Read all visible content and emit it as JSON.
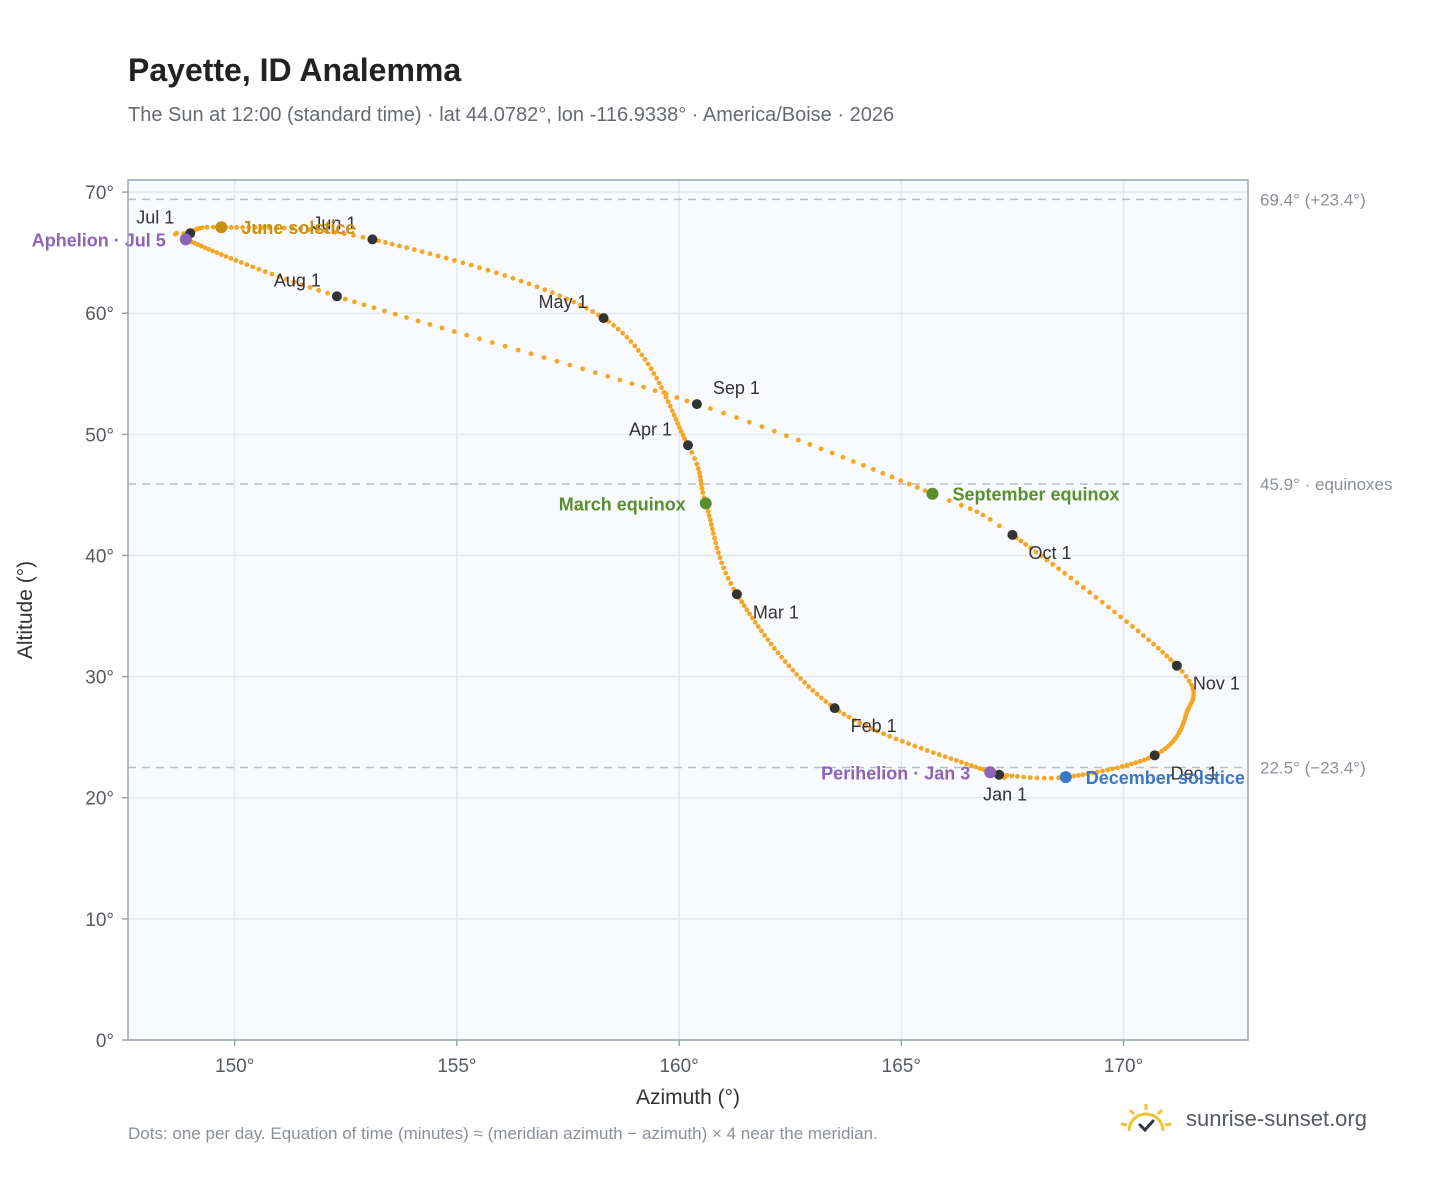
{
  "title": "Payette, ID Analemma",
  "subtitle": "The Sun at 12:00 (standard time) · lat 44.0782°, lon -116.9338° · America/Boise · 2026",
  "footnote": "Dots: one per day. Equation of time (minutes) ≈ (meridian azimuth − azimuth) × 4 near the meridian.",
  "brand": {
    "name": "sunrise-sunset.org",
    "icon": "sun-check-icon"
  },
  "colors": {
    "path": "#f5a623",
    "month_marker": "#333333",
    "solstice_june": "#c8900f",
    "solstice_december": "#3a78c3",
    "equinox": "#5a8f2d",
    "apsis": "#8d63b7",
    "reference_line": "#b8bfc8",
    "plot_bg": "#f8fafd",
    "grid": "#e3e8ee",
    "frame": "#98a4b3"
  },
  "chart_data": {
    "type": "scatter",
    "xlabel": "Azimuth (°)",
    "ylabel": "Altitude (°)",
    "xlim": [
      147.6,
      172.8
    ],
    "ylim": [
      0,
      71
    ],
    "x_ticks": [
      {
        "value": 150,
        "label": "150°"
      },
      {
        "value": 155,
        "label": "155°"
      },
      {
        "value": 160,
        "label": "160°"
      },
      {
        "value": 165,
        "label": "165°"
      },
      {
        "value": 170,
        "label": "170°"
      }
    ],
    "y_ticks": [
      {
        "value": 0,
        "label": "0°"
      },
      {
        "value": 10,
        "label": "10°"
      },
      {
        "value": 20,
        "label": "20°"
      },
      {
        "value": 30,
        "label": "30°"
      },
      {
        "value": 40,
        "label": "40°"
      },
      {
        "value": 50,
        "label": "50°"
      },
      {
        "value": 60,
        "label": "60°"
      },
      {
        "value": 70,
        "label": "70°"
      }
    ],
    "grid": true,
    "reference_lines": [
      {
        "y": 69.4,
        "label": "69.4° (+23.4°)"
      },
      {
        "y": 45.9,
        "label": "45.9° · equinoxes"
      },
      {
        "y": 22.5,
        "label": "22.5° (−23.4°)"
      }
    ],
    "path_knots": [
      {
        "day": 1,
        "azimuth": 167.2,
        "altitude": 21.9
      },
      {
        "day": 3,
        "azimuth": 167.0,
        "altitude": 22.1
      },
      {
        "day": 32,
        "azimuth": 163.5,
        "altitude": 27.4
      },
      {
        "day": 60,
        "azimuth": 161.3,
        "altitude": 36.8
      },
      {
        "day": 79,
        "azimuth": 160.6,
        "altitude": 44.3
      },
      {
        "day": 91,
        "azimuth": 160.2,
        "altitude": 49.1
      },
      {
        "day": 121,
        "azimuth": 158.3,
        "altitude": 59.6
      },
      {
        "day": 152,
        "azimuth": 153.1,
        "altitude": 66.1
      },
      {
        "day": 172,
        "azimuth": 149.7,
        "altitude": 67.1
      },
      {
        "day": 182,
        "azimuth": 149.0,
        "altitude": 66.6
      },
      {
        "day": 186,
        "azimuth": 148.9,
        "altitude": 66.1
      },
      {
        "day": 213,
        "azimuth": 152.3,
        "altitude": 61.4
      },
      {
        "day": 244,
        "azimuth": 160.4,
        "altitude": 52.5
      },
      {
        "day": 266,
        "azimuth": 165.7,
        "altitude": 45.1
      },
      {
        "day": 274,
        "azimuth": 167.5,
        "altitude": 41.7
      },
      {
        "day": 305,
        "azimuth": 171.2,
        "altitude": 30.9
      },
      {
        "day": 320,
        "azimuth": 171.4,
        "altitude": 26.8
      },
      {
        "day": 335,
        "azimuth": 170.7,
        "altitude": 23.5
      },
      {
        "day": 355,
        "azimuth": 168.7,
        "altitude": 21.7
      },
      {
        "day": 366,
        "azimuth": 167.2,
        "altitude": 21.9
      }
    ],
    "month_markers": [
      {
        "label": "Jan 1",
        "azimuth": 167.2,
        "altitude": 21.9,
        "label_pos": "below-left"
      },
      {
        "label": "Feb 1",
        "azimuth": 163.5,
        "altitude": 27.4,
        "label_pos": "below-right"
      },
      {
        "label": "Mar 1",
        "azimuth": 161.3,
        "altitude": 36.8,
        "label_pos": "below-right"
      },
      {
        "label": "Apr 1",
        "azimuth": 160.2,
        "altitude": 49.1,
        "label_pos": "above-left"
      },
      {
        "label": "May 1",
        "azimuth": 158.3,
        "altitude": 59.6,
        "label_pos": "above-left"
      },
      {
        "label": "Jun 1",
        "azimuth": 153.1,
        "altitude": 66.1,
        "label_pos": "above-left"
      },
      {
        "label": "Jul 1",
        "azimuth": 149.0,
        "altitude": 66.6,
        "label_pos": "above-left"
      },
      {
        "label": "Aug 1",
        "azimuth": 152.3,
        "altitude": 61.4,
        "label_pos": "above-left"
      },
      {
        "label": "Sep 1",
        "azimuth": 160.4,
        "altitude": 52.5,
        "label_pos": "above-right"
      },
      {
        "label": "Oct 1",
        "azimuth": 167.5,
        "altitude": 41.7,
        "label_pos": "below-right"
      },
      {
        "label": "Nov 1",
        "azimuth": 171.2,
        "altitude": 30.9,
        "label_pos": "below-right"
      },
      {
        "label": "Dec 1",
        "azimuth": 170.7,
        "altitude": 23.5,
        "label_pos": "below-right"
      }
    ],
    "events": [
      {
        "label": "June solstice",
        "azimuth": 149.7,
        "altitude": 67.1,
        "color": "#c8900f",
        "label_pos": "right"
      },
      {
        "label": "December solstice",
        "azimuth": 168.7,
        "altitude": 21.7,
        "color": "#3a78c3",
        "label_pos": "right"
      },
      {
        "label": "March equinox",
        "azimuth": 160.6,
        "altitude": 44.3,
        "color": "#5a8f2d",
        "label_pos": "left"
      },
      {
        "label": "September equinox",
        "azimuth": 165.7,
        "altitude": 45.1,
        "color": "#5a8f2d",
        "label_pos": "right"
      },
      {
        "label": "Aphelion · Jul 5",
        "azimuth": 148.9,
        "altitude": 66.1,
        "color": "#8d63b7",
        "label_pos": "left"
      },
      {
        "label": "Perihelion · Jan 3",
        "azimuth": 167.0,
        "altitude": 22.1,
        "color": "#8d63b7",
        "label_pos": "left"
      }
    ]
  }
}
